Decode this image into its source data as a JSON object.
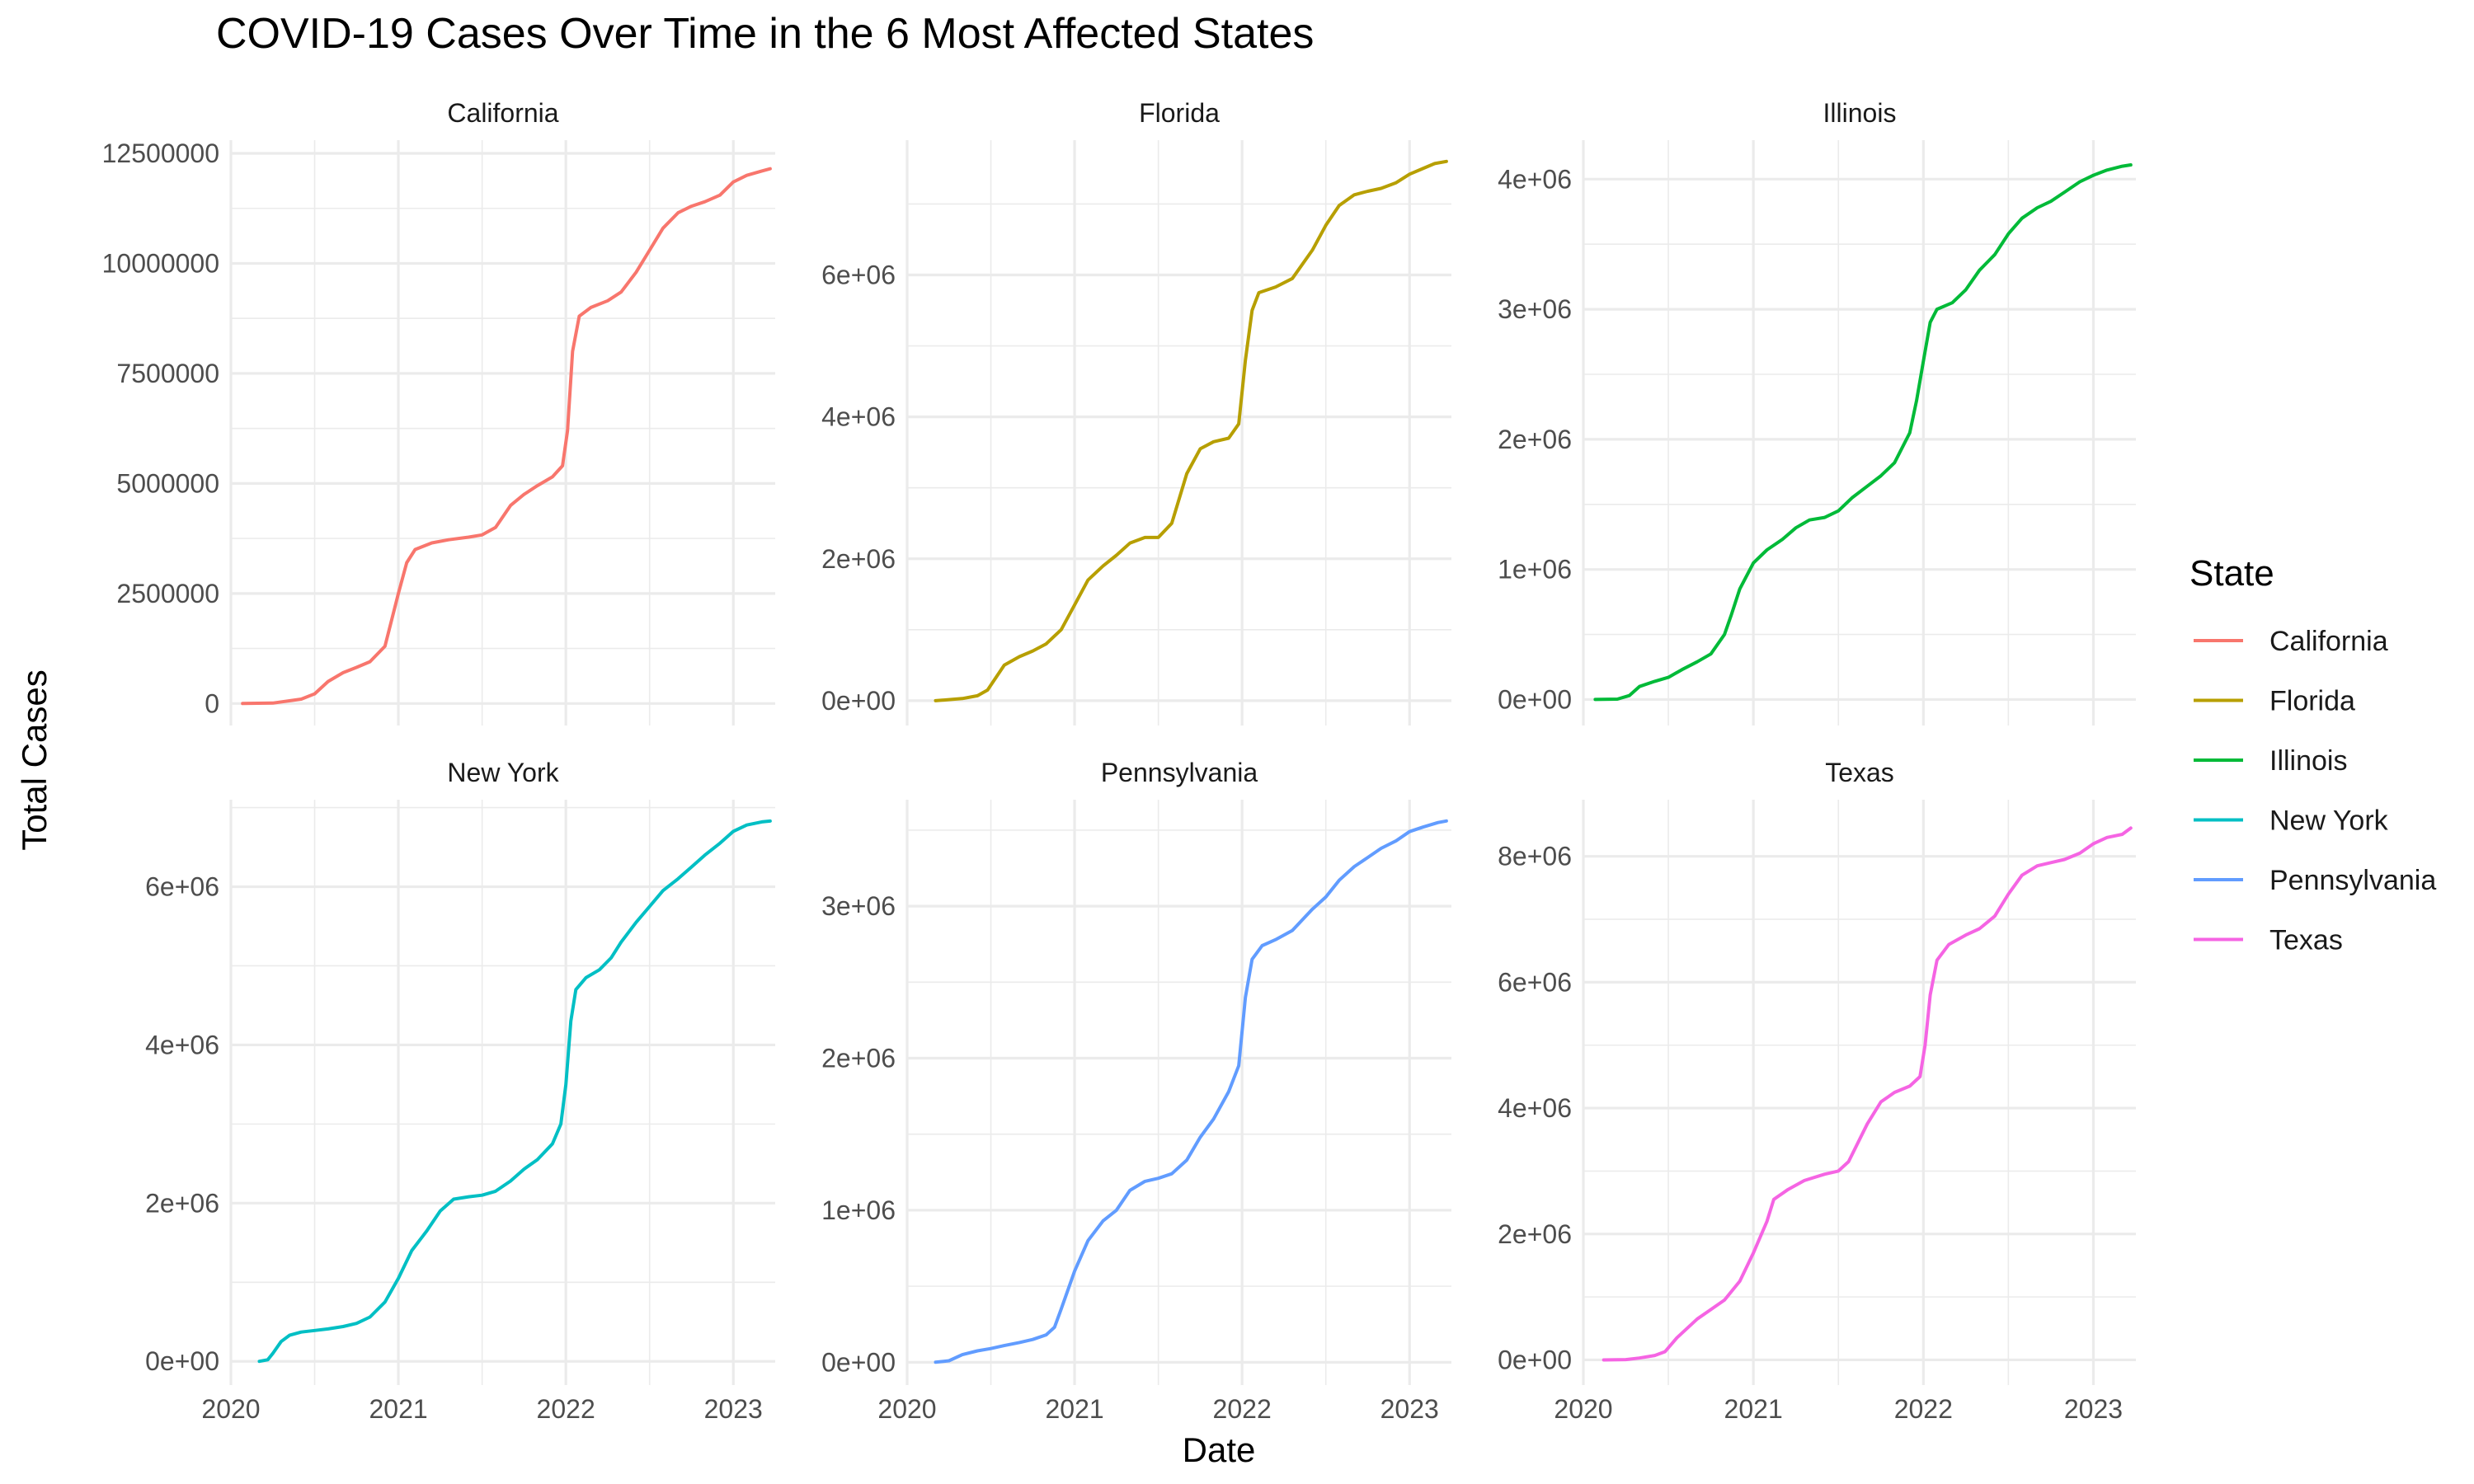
{
  "chart_data": {
    "type": "line",
    "title": "COVID-19 Cases Over Time in the 6 Most Affected States",
    "xlabel": "Date",
    "ylabel": "Total Cases",
    "legend_title": "State",
    "legend_position": "right",
    "grid": true,
    "x_ticks": [
      "2020",
      "2021",
      "2022",
      "2023"
    ],
    "x_range": [
      2020.0,
      2023.25
    ],
    "panels": [
      {
        "name": "California",
        "color": "#F8766D",
        "ylim": [
          -500000,
          12800000
        ],
        "y_ticks": [
          {
            "value": 0,
            "label": "0"
          },
          {
            "value": 2500000,
            "label": "2500000"
          },
          {
            "value": 5000000,
            "label": "5000000"
          },
          {
            "value": 7500000,
            "label": "7500000"
          },
          {
            "value": 10000000,
            "label": "10000000"
          },
          {
            "value": 12500000,
            "label": "12500000"
          }
        ],
        "points": [
          [
            2020.07,
            0
          ],
          [
            2020.25,
            10000
          ],
          [
            2020.42,
            100000
          ],
          [
            2020.5,
            220000
          ],
          [
            2020.58,
            500000
          ],
          [
            2020.67,
            700000
          ],
          [
            2020.75,
            820000
          ],
          [
            2020.83,
            950000
          ],
          [
            2020.92,
            1300000
          ],
          [
            2021.0,
            2500000
          ],
          [
            2021.05,
            3200000
          ],
          [
            2021.1,
            3500000
          ],
          [
            2021.2,
            3650000
          ],
          [
            2021.3,
            3720000
          ],
          [
            2021.42,
            3780000
          ],
          [
            2021.5,
            3830000
          ],
          [
            2021.58,
            4000000
          ],
          [
            2021.67,
            4500000
          ],
          [
            2021.75,
            4750000
          ],
          [
            2021.83,
            4950000
          ],
          [
            2021.92,
            5150000
          ],
          [
            2021.98,
            5400000
          ],
          [
            2022.01,
            6200000
          ],
          [
            2022.04,
            8000000
          ],
          [
            2022.08,
            8800000
          ],
          [
            2022.15,
            9000000
          ],
          [
            2022.25,
            9150000
          ],
          [
            2022.33,
            9350000
          ],
          [
            2022.42,
            9800000
          ],
          [
            2022.5,
            10300000
          ],
          [
            2022.58,
            10800000
          ],
          [
            2022.67,
            11150000
          ],
          [
            2022.75,
            11300000
          ],
          [
            2022.83,
            11400000
          ],
          [
            2022.92,
            11550000
          ],
          [
            2023.0,
            11850000
          ],
          [
            2023.08,
            12000000
          ],
          [
            2023.17,
            12100000
          ],
          [
            2023.22,
            12150000
          ]
        ]
      },
      {
        "name": "Florida",
        "color": "#B79F00",
        "ylim": [
          -350000,
          7900000
        ],
        "y_ticks": [
          {
            "value": 0,
            "label": "0e+00"
          },
          {
            "value": 2000000,
            "label": "2e+06"
          },
          {
            "value": 4000000,
            "label": "4e+06"
          },
          {
            "value": 6000000,
            "label": "6e+06"
          }
        ],
        "points": [
          [
            2020.17,
            0
          ],
          [
            2020.33,
            30000
          ],
          [
            2020.42,
            70000
          ],
          [
            2020.48,
            150000
          ],
          [
            2020.58,
            500000
          ],
          [
            2020.67,
            620000
          ],
          [
            2020.75,
            700000
          ],
          [
            2020.83,
            800000
          ],
          [
            2020.92,
            1000000
          ],
          [
            2021.0,
            1350000
          ],
          [
            2021.08,
            1700000
          ],
          [
            2021.17,
            1900000
          ],
          [
            2021.25,
            2050000
          ],
          [
            2021.33,
            2220000
          ],
          [
            2021.42,
            2300000
          ],
          [
            2021.5,
            2300000
          ],
          [
            2021.58,
            2500000
          ],
          [
            2021.67,
            3200000
          ],
          [
            2021.75,
            3550000
          ],
          [
            2021.83,
            3650000
          ],
          [
            2021.92,
            3700000
          ],
          [
            2021.98,
            3900000
          ],
          [
            2022.02,
            4800000
          ],
          [
            2022.06,
            5500000
          ],
          [
            2022.1,
            5750000
          ],
          [
            2022.2,
            5830000
          ],
          [
            2022.3,
            5950000
          ],
          [
            2022.42,
            6350000
          ],
          [
            2022.5,
            6700000
          ],
          [
            2022.58,
            6980000
          ],
          [
            2022.67,
            7130000
          ],
          [
            2022.75,
            7180000
          ],
          [
            2022.83,
            7220000
          ],
          [
            2022.92,
            7300000
          ],
          [
            2023.0,
            7420000
          ],
          [
            2023.08,
            7500000
          ],
          [
            2023.15,
            7570000
          ],
          [
            2023.22,
            7600000
          ]
        ]
      },
      {
        "name": "Illinois",
        "color": "#00BA38",
        "ylim": [
          -200000,
          4300000
        ],
        "y_ticks": [
          {
            "value": 0,
            "label": "0e+00"
          },
          {
            "value": 1000000,
            "label": "1e+06"
          },
          {
            "value": 2000000,
            "label": "2e+06"
          },
          {
            "value": 3000000,
            "label": "3e+06"
          },
          {
            "value": 4000000,
            "label": "4e+06"
          }
        ],
        "points": [
          [
            2020.07,
            0
          ],
          [
            2020.2,
            3000
          ],
          [
            2020.27,
            30000
          ],
          [
            2020.33,
            100000
          ],
          [
            2020.42,
            140000
          ],
          [
            2020.5,
            170000
          ],
          [
            2020.58,
            230000
          ],
          [
            2020.67,
            290000
          ],
          [
            2020.75,
            350000
          ],
          [
            2020.83,
            500000
          ],
          [
            2020.87,
            650000
          ],
          [
            2020.92,
            850000
          ],
          [
            2021.0,
            1050000
          ],
          [
            2021.08,
            1150000
          ],
          [
            2021.17,
            1230000
          ],
          [
            2021.25,
            1320000
          ],
          [
            2021.33,
            1380000
          ],
          [
            2021.42,
            1400000
          ],
          [
            2021.5,
            1450000
          ],
          [
            2021.58,
            1550000
          ],
          [
            2021.67,
            1640000
          ],
          [
            2021.75,
            1720000
          ],
          [
            2021.83,
            1820000
          ],
          [
            2021.92,
            2050000
          ],
          [
            2021.96,
            2300000
          ],
          [
            2022.0,
            2600000
          ],
          [
            2022.04,
            2900000
          ],
          [
            2022.08,
            3000000
          ],
          [
            2022.17,
            3050000
          ],
          [
            2022.25,
            3150000
          ],
          [
            2022.33,
            3300000
          ],
          [
            2022.42,
            3420000
          ],
          [
            2022.5,
            3580000
          ],
          [
            2022.58,
            3700000
          ],
          [
            2022.67,
            3780000
          ],
          [
            2022.75,
            3830000
          ],
          [
            2022.83,
            3900000
          ],
          [
            2022.92,
            3980000
          ],
          [
            2023.0,
            4030000
          ],
          [
            2023.08,
            4070000
          ],
          [
            2023.17,
            4100000
          ],
          [
            2023.22,
            4110000
          ]
        ]
      },
      {
        "name": "New York",
        "color": "#00BFC4",
        "ylim": [
          -300000,
          7100000
        ],
        "y_ticks": [
          {
            "value": 0,
            "label": "0e+00"
          },
          {
            "value": 2000000,
            "label": "2e+06"
          },
          {
            "value": 4000000,
            "label": "4e+06"
          },
          {
            "value": 6000000,
            "label": "6e+06"
          }
        ],
        "points": [
          [
            2020.17,
            0
          ],
          [
            2020.22,
            20000
          ],
          [
            2020.25,
            100000
          ],
          [
            2020.3,
            250000
          ],
          [
            2020.35,
            330000
          ],
          [
            2020.42,
            370000
          ],
          [
            2020.5,
            390000
          ],
          [
            2020.58,
            410000
          ],
          [
            2020.67,
            440000
          ],
          [
            2020.75,
            480000
          ],
          [
            2020.83,
            560000
          ],
          [
            2020.92,
            750000
          ],
          [
            2021.0,
            1050000
          ],
          [
            2021.08,
            1400000
          ],
          [
            2021.17,
            1650000
          ],
          [
            2021.25,
            1900000
          ],
          [
            2021.33,
            2050000
          ],
          [
            2021.42,
            2080000
          ],
          [
            2021.5,
            2100000
          ],
          [
            2021.58,
            2150000
          ],
          [
            2021.67,
            2280000
          ],
          [
            2021.75,
            2430000
          ],
          [
            2021.83,
            2550000
          ],
          [
            2021.92,
            2750000
          ],
          [
            2021.97,
            3000000
          ],
          [
            2022.0,
            3500000
          ],
          [
            2022.03,
            4300000
          ],
          [
            2022.06,
            4700000
          ],
          [
            2022.12,
            4850000
          ],
          [
            2022.2,
            4950000
          ],
          [
            2022.27,
            5100000
          ],
          [
            2022.33,
            5300000
          ],
          [
            2022.42,
            5550000
          ],
          [
            2022.5,
            5750000
          ],
          [
            2022.58,
            5950000
          ],
          [
            2022.67,
            6100000
          ],
          [
            2022.75,
            6250000
          ],
          [
            2022.83,
            6400000
          ],
          [
            2022.92,
            6550000
          ],
          [
            2023.0,
            6700000
          ],
          [
            2023.08,
            6780000
          ],
          [
            2023.17,
            6820000
          ],
          [
            2023.22,
            6830000
          ]
        ]
      },
      {
        "name": "Pennsylvania",
        "color": "#619CFF",
        "ylim": [
          -150000,
          3700000
        ],
        "y_ticks": [
          {
            "value": 0,
            "label": "0e+00"
          },
          {
            "value": 1000000,
            "label": "1e+06"
          },
          {
            "value": 2000000,
            "label": "2e+06"
          },
          {
            "value": 3000000,
            "label": "3e+06"
          }
        ],
        "points": [
          [
            2020.17,
            0
          ],
          [
            2020.25,
            10000
          ],
          [
            2020.33,
            50000
          ],
          [
            2020.42,
            75000
          ],
          [
            2020.5,
            90000
          ],
          [
            2020.58,
            110000
          ],
          [
            2020.67,
            130000
          ],
          [
            2020.75,
            150000
          ],
          [
            2020.83,
            180000
          ],
          [
            2020.88,
            230000
          ],
          [
            2020.92,
            350000
          ],
          [
            2021.0,
            600000
          ],
          [
            2021.08,
            800000
          ],
          [
            2021.17,
            930000
          ],
          [
            2021.25,
            1000000
          ],
          [
            2021.33,
            1130000
          ],
          [
            2021.42,
            1190000
          ],
          [
            2021.5,
            1210000
          ],
          [
            2021.58,
            1240000
          ],
          [
            2021.67,
            1330000
          ],
          [
            2021.75,
            1480000
          ],
          [
            2021.83,
            1600000
          ],
          [
            2021.92,
            1780000
          ],
          [
            2021.98,
            1950000
          ],
          [
            2022.02,
            2400000
          ],
          [
            2022.06,
            2650000
          ],
          [
            2022.12,
            2740000
          ],
          [
            2022.2,
            2780000
          ],
          [
            2022.3,
            2840000
          ],
          [
            2022.42,
            2980000
          ],
          [
            2022.5,
            3060000
          ],
          [
            2022.58,
            3170000
          ],
          [
            2022.67,
            3260000
          ],
          [
            2022.75,
            3320000
          ],
          [
            2022.83,
            3380000
          ],
          [
            2022.92,
            3430000
          ],
          [
            2023.0,
            3490000
          ],
          [
            2023.08,
            3520000
          ],
          [
            2023.17,
            3550000
          ],
          [
            2023.22,
            3560000
          ]
        ]
      },
      {
        "name": "Texas",
        "color": "#F564E3",
        "ylim": [
          -400000,
          8900000
        ],
        "y_ticks": [
          {
            "value": 0,
            "label": "0e+00"
          },
          {
            "value": 2000000,
            "label": "2e+06"
          },
          {
            "value": 4000000,
            "label": "4e+06"
          },
          {
            "value": 6000000,
            "label": "6e+06"
          },
          {
            "value": 8000000,
            "label": "8e+06"
          }
        ],
        "points": [
          [
            2020.12,
            0
          ],
          [
            2020.25,
            5000
          ],
          [
            2020.33,
            30000
          ],
          [
            2020.42,
            70000
          ],
          [
            2020.48,
            130000
          ],
          [
            2020.55,
            350000
          ],
          [
            2020.67,
            650000
          ],
          [
            2020.75,
            800000
          ],
          [
            2020.83,
            950000
          ],
          [
            2020.92,
            1250000
          ],
          [
            2021.0,
            1700000
          ],
          [
            2021.08,
            2200000
          ],
          [
            2021.12,
            2550000
          ],
          [
            2021.2,
            2700000
          ],
          [
            2021.3,
            2850000
          ],
          [
            2021.42,
            2950000
          ],
          [
            2021.5,
            3000000
          ],
          [
            2021.56,
            3150000
          ],
          [
            2021.67,
            3750000
          ],
          [
            2021.75,
            4100000
          ],
          [
            2021.83,
            4250000
          ],
          [
            2021.92,
            4350000
          ],
          [
            2021.98,
            4500000
          ],
          [
            2022.01,
            5000000
          ],
          [
            2022.04,
            5800000
          ],
          [
            2022.08,
            6350000
          ],
          [
            2022.15,
            6600000
          ],
          [
            2022.25,
            6750000
          ],
          [
            2022.33,
            6850000
          ],
          [
            2022.42,
            7050000
          ],
          [
            2022.5,
            7400000
          ],
          [
            2022.58,
            7700000
          ],
          [
            2022.67,
            7850000
          ],
          [
            2022.75,
            7900000
          ],
          [
            2022.83,
            7950000
          ],
          [
            2022.92,
            8050000
          ],
          [
            2023.0,
            8200000
          ],
          [
            2023.08,
            8300000
          ],
          [
            2023.17,
            8350000
          ],
          [
            2023.22,
            8450000
          ]
        ]
      }
    ]
  }
}
